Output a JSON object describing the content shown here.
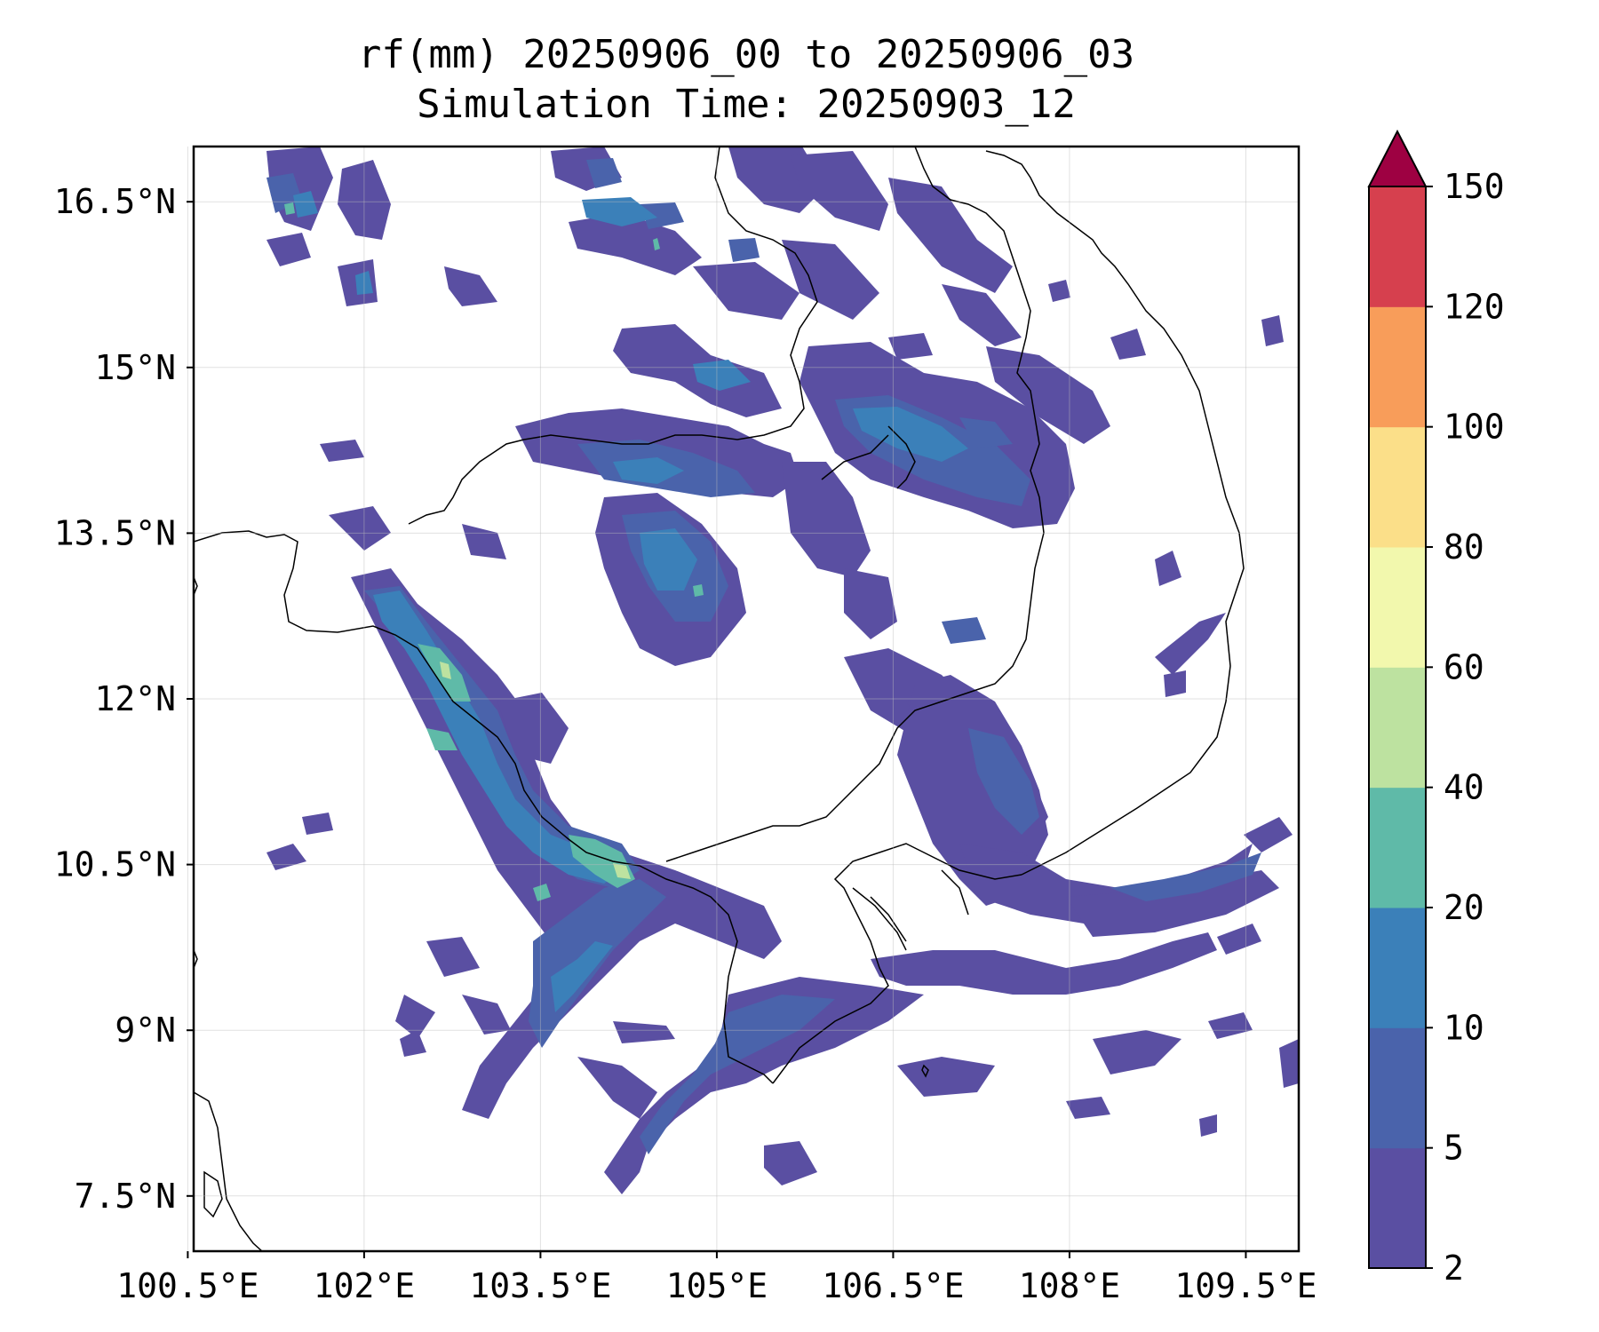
{
  "map": {
    "title_line_1": "rf(mm) 20250906_00 to 20250906_03",
    "title_line_2": "Simulation Time: 20250903_12",
    "lon_labels": [
      "100.5°E",
      "102°E",
      "103.5°E",
      "105°E",
      "106.5°E",
      "108°E",
      "109.5°E"
    ],
    "lat_labels": [
      "16.5°N",
      "15°N",
      "13.5°N",
      "12°N",
      "10.5°N",
      "9°N",
      "7.5°N"
    ],
    "lon_ticks": [
      100.5,
      102,
      103.5,
      105,
      106.5,
      108,
      109.5
    ],
    "lat_ticks": [
      16.5,
      15,
      13.5,
      12,
      10.5,
      9,
      7.5
    ],
    "extent": {
      "lon_min": 100.55,
      "lon_max": 109.95,
      "lat_min": 7.0,
      "lat_max": 17.0
    },
    "gridlines": true,
    "coastline_color": "#000000"
  },
  "colorbar": {
    "levels": [
      "2",
      "5",
      "10",
      "20",
      "40",
      "60",
      "80",
      "100",
      "120",
      "150"
    ],
    "colors": [
      "#5a4fa2",
      "#4a63ab",
      "#3b80b9",
      "#5fbaa8",
      "#bde2a0",
      "#f2f8ad",
      "#fbdf89",
      "#f89d5a",
      "#d6404e"
    ],
    "extend_color": "#9e0142",
    "extend": "max"
  }
}
